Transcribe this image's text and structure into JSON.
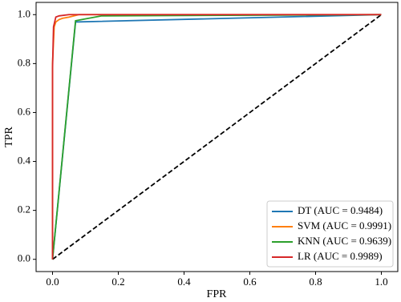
{
  "chart_data": {
    "type": "line",
    "xlabel": "FPR",
    "ylabel": "TPR",
    "xlim": [
      -0.05,
      1.05
    ],
    "ylim": [
      -0.05,
      1.05
    ],
    "xticks": [
      {
        "value": 0,
        "label": "0.0"
      },
      0.2,
      0.4,
      0.6,
      0.8,
      {
        "value": 1,
        "label": "1.0"
      }
    ],
    "yticks": [
      {
        "value": 0,
        "label": "0.0"
      },
      0.2,
      0.4,
      0.6,
      0.8,
      {
        "value": 1,
        "label": "1.0"
      }
    ],
    "legend": "lower right",
    "series": [
      {
        "name": "DT (AUC = 0.9484)",
        "color": "#1f77b4",
        "x": [
          0,
          0.07,
          1
        ],
        "values": [
          0,
          0.97,
          1
        ]
      },
      {
        "name": "SVM (AUC = 0.9991)",
        "color": "#ff7f0e",
        "x": [
          0,
          0,
          0.005,
          0.01,
          0.02,
          0.03,
          0.05,
          0.08,
          1
        ],
        "values": [
          0,
          0.8,
          0.95,
          0.97,
          0.98,
          0.985,
          0.99,
          1,
          1
        ]
      },
      {
        "name": "KNN (AUC = 0.9639)",
        "color": "#2ca02c",
        "x": [
          0,
          0.07,
          0.15,
          1
        ],
        "values": [
          0,
          0.975,
          0.995,
          1
        ]
      },
      {
        "name": "LR (AUC = 0.9989)",
        "color": "#d62728",
        "x": [
          0,
          0,
          0.003,
          0.01,
          0.02,
          0.05,
          1
        ],
        "values": [
          0,
          0.78,
          0.95,
          0.99,
          0.995,
          1,
          1
        ]
      }
    ],
    "diagonal": {
      "x": [
        0,
        1
      ],
      "values": [
        0,
        1
      ],
      "color": "#000000",
      "dash": true
    }
  }
}
